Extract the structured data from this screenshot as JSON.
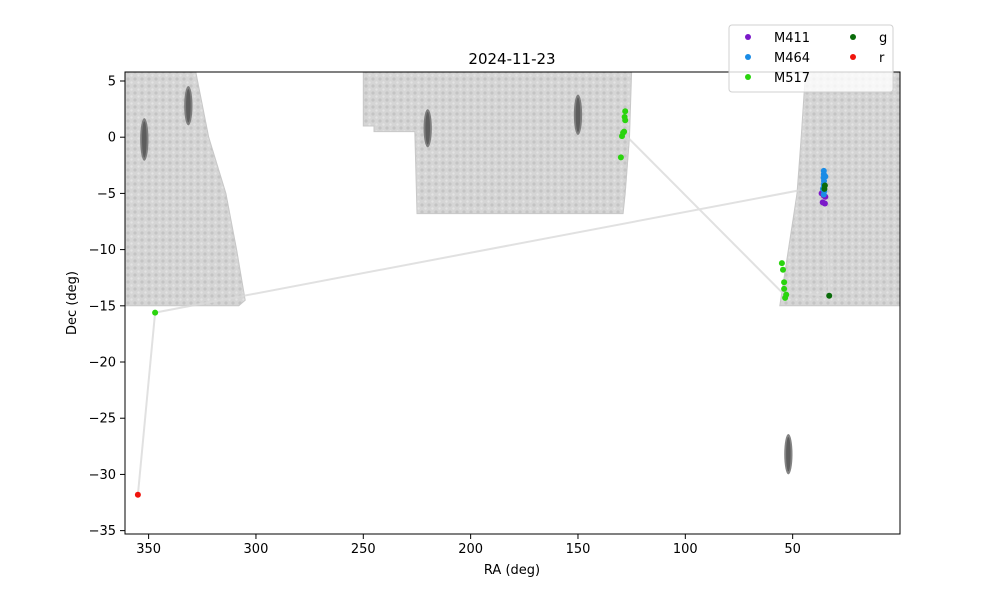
{
  "chart_data": {
    "type": "scatter",
    "title": "2024-11-23",
    "xlabel": "RA (deg)",
    "ylabel": "Dec (deg)",
    "xlim": [
      361,
      0
    ],
    "ylim": [
      -35.3,
      5.8
    ],
    "x_ticks": [
      350,
      300,
      250,
      200,
      150,
      100,
      50
    ],
    "y_ticks": [
      5,
      0,
      -5,
      -10,
      -15,
      -20,
      -25,
      -30,
      -35
    ],
    "grid": false,
    "legend_position": "top-right",
    "footprint_color": "#c8c8c8",
    "footprint_regions": [
      {
        "polygon": [
          [
            362,
            5.8
          ],
          [
            328,
            5.8
          ],
          [
            322,
            0
          ],
          [
            314,
            -5
          ],
          [
            309,
            -10
          ],
          [
            305,
            -14.5
          ],
          [
            308,
            -15
          ],
          [
            362,
            -15
          ]
        ]
      },
      {
        "polygon": [
          [
            250,
            5.8
          ],
          [
            125,
            5.8
          ],
          [
            126,
            0
          ],
          [
            128,
            -5
          ],
          [
            129,
            -6.8
          ],
          [
            225,
            -6.8
          ],
          [
            226,
            0.5
          ],
          [
            245,
            0.5
          ],
          [
            245,
            1
          ],
          [
            250,
            1
          ]
        ]
      },
      {
        "polygon": [
          [
            44,
            5.8
          ],
          [
            0,
            5.8
          ],
          [
            0,
            -15
          ],
          [
            56,
            -15
          ],
          [
            52,
            -10
          ],
          [
            48,
            -5
          ],
          [
            46,
            0
          ]
        ]
      }
    ],
    "dense_patches": [
      {
        "ra": 352,
        "dec": -0.2,
        "ra_width": 2,
        "dec_height": 3.8
      },
      {
        "ra": 331.5,
        "dec": 2.8,
        "ra_width": 2,
        "dec_height": 3.5
      },
      {
        "ra": 220,
        "dec": 0.8,
        "ra_width": 2,
        "dec_height": 3.4
      },
      {
        "ra": 150,
        "dec": 2,
        "ra_width": 2,
        "dec_height": 3.6
      },
      {
        "ra": 52,
        "dec": -28.2,
        "ra_width": 2,
        "dec_height": 3.6
      }
    ],
    "path_color": "#d9d9d9",
    "path": [
      [
        355,
        -31.8
      ],
      [
        347,
        -15.6
      ],
      [
        35,
        -4.3
      ],
      [
        33,
        -14.1
      ],
      [
        55,
        -13.8
      ],
      [
        130,
        0.6
      ]
    ],
    "series": [
      {
        "name": "M411",
        "color": "#7b19c9",
        "points": [
          [
            36.5,
            -5
          ],
          [
            35.5,
            -5.2
          ],
          [
            34.8,
            -5.3
          ],
          [
            36,
            -5.8
          ],
          [
            35,
            -5.9
          ]
        ]
      },
      {
        "name": "M464",
        "color": "#1a8ce6",
        "points": [
          [
            35.5,
            -3
          ],
          [
            35.5,
            -3.3
          ],
          [
            35.6,
            -3.6
          ],
          [
            35.4,
            -3.9
          ],
          [
            35.5,
            -4.2
          ],
          [
            35.6,
            -4.5
          ],
          [
            35.3,
            -4.8
          ],
          [
            35.5,
            -5.1
          ],
          [
            34.8,
            -3.5
          ],
          [
            35.9,
            -4.6
          ]
        ]
      },
      {
        "name": "M517",
        "color": "#2ad40e",
        "points": [
          [
            347,
            -15.6
          ],
          [
            128,
            2.3
          ],
          [
            128.3,
            1.8
          ],
          [
            128,
            1.5
          ],
          [
            129,
            0.4
          ],
          [
            129.5,
            0.1
          ],
          [
            128.5,
            0.5
          ],
          [
            130,
            -1.8
          ],
          [
            55,
            -11.2
          ],
          [
            54.5,
            -11.8
          ],
          [
            54,
            -12.9
          ],
          [
            54,
            -13.5
          ],
          [
            53,
            -14
          ],
          [
            53.5,
            -14.3
          ]
        ]
      },
      {
        "name": "g",
        "color": "#0a6b0a",
        "points": [
          [
            35,
            -4.3
          ],
          [
            35.2,
            -4.6
          ],
          [
            33,
            -14.1
          ]
        ]
      },
      {
        "name": "r",
        "color": "#f0140c",
        "points": [
          [
            355,
            -31.8
          ]
        ]
      }
    ]
  }
}
